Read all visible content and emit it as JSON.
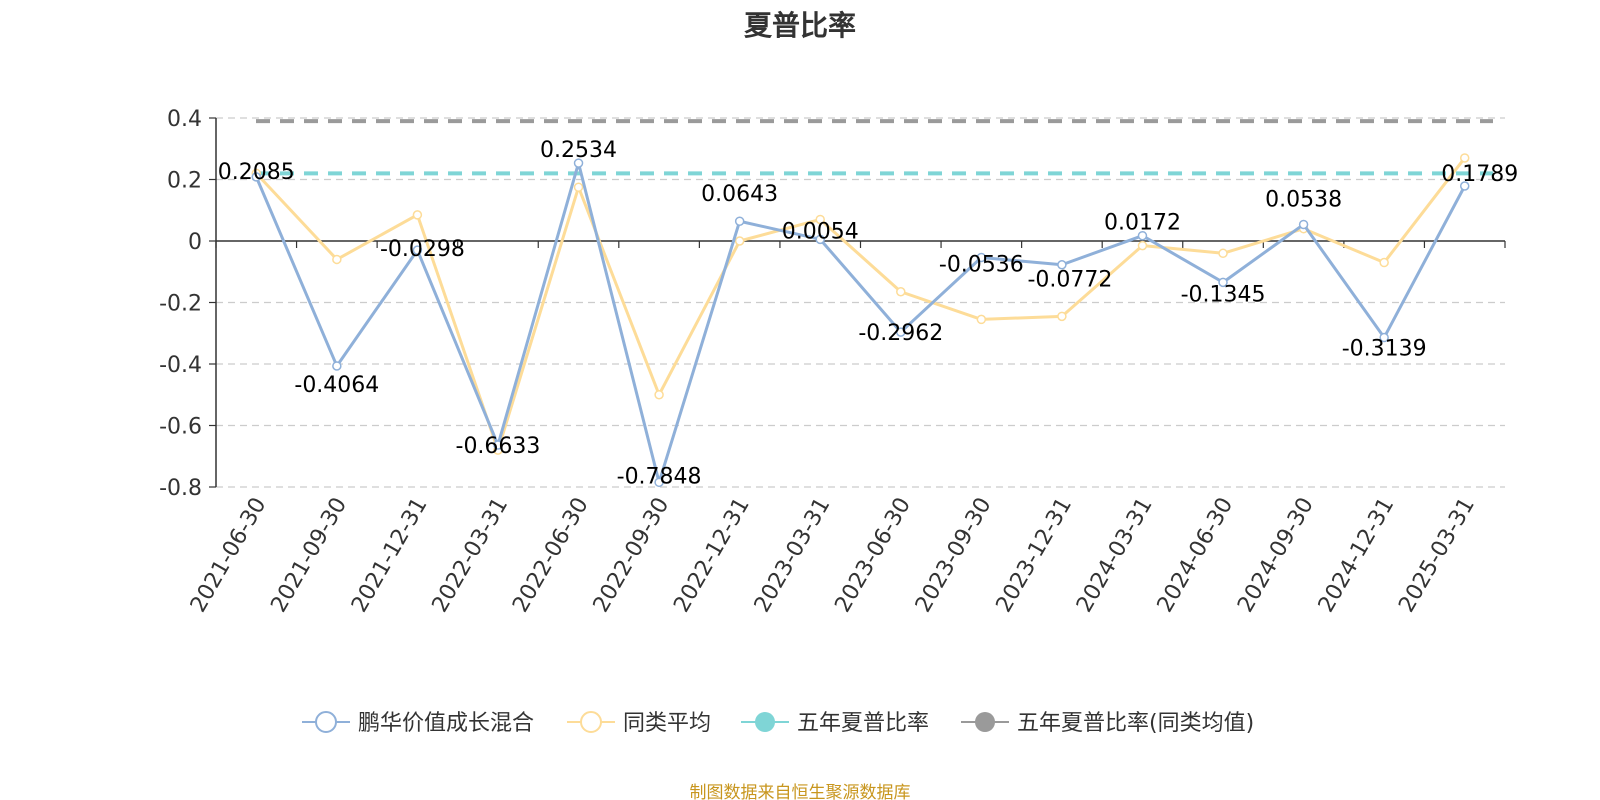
{
  "chart_data": {
    "type": "line",
    "title": "夏普比率",
    "source": "制图数据来自恒生聚源数据库",
    "categories": [
      "2021-06-30",
      "2021-09-30",
      "2021-12-31",
      "2022-03-31",
      "2022-06-30",
      "2022-09-30",
      "2022-12-31",
      "2023-03-31",
      "2023-06-30",
      "2023-09-30",
      "2023-12-31",
      "2024-03-31",
      "2024-06-30",
      "2024-09-30",
      "2024-12-31",
      "2025-03-31"
    ],
    "ylim": [
      -0.8,
      0.4
    ],
    "yticks": [
      0.4,
      0.2,
      0,
      -0.2,
      -0.4,
      -0.6,
      -0.8
    ],
    "ytick_labels": [
      "0.4",
      "0.2",
      "0",
      "-0.2",
      "-0.4",
      "-0.6",
      "-0.8"
    ],
    "grid": true,
    "legend_position": "bottom",
    "series": [
      {
        "name": "鹏华价值成长混合",
        "color": "#8fb0d9",
        "marker": "circle-hollow",
        "values": [
          0.2085,
          -0.4064,
          -0.0298,
          -0.6633,
          0.2534,
          -0.7848,
          0.0643,
          0.0054,
          -0.2962,
          -0.0536,
          -0.0772,
          0.0172,
          -0.1345,
          0.0538,
          -0.3139,
          0.1789
        ],
        "labels": [
          "0.2085",
          "-0.4064",
          "-0.0298",
          "-0.6633",
          "0.2534",
          "-0.7848",
          "0.0643",
          "0.0054",
          "-0.2962",
          "-0.0536",
          "-0.0772",
          "0.0172",
          "-0.1345",
          "0.0538",
          "-0.3139",
          "0.1789"
        ]
      },
      {
        "name": "同类平均",
        "color": "#fddc98",
        "marker": "circle-hollow",
        "values": [
          0.22,
          -0.06,
          0.085,
          -0.68,
          0.175,
          -0.5,
          0.0,
          0.07,
          -0.165,
          -0.255,
          -0.245,
          -0.015,
          -0.04,
          0.04,
          -0.07,
          0.27
        ]
      },
      {
        "name": "五年夏普比率",
        "color": "#7fd5d6",
        "marker": "circle-filled",
        "style": "dashed",
        "constant": 0.22
      },
      {
        "name": "五年夏普比率(同类均值)",
        "color": "#9a9a9a",
        "marker": "circle-filled",
        "style": "dashed",
        "constant": 0.39
      }
    ]
  }
}
